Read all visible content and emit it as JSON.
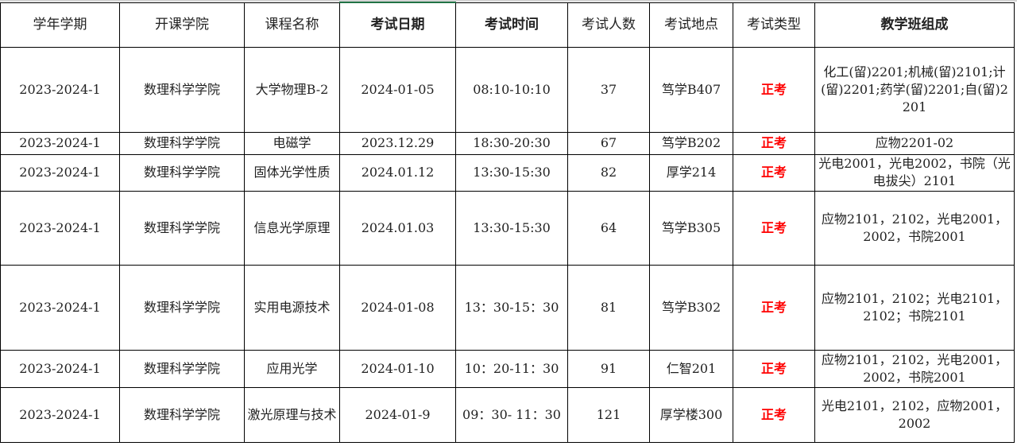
{
  "headers": [
    "学年学期",
    "开课学院",
    "课程名称",
    "考试日期",
    "考试时间",
    "考试人数",
    "考试地点",
    "考试类型",
    "教学班组成"
  ],
  "rows": [
    [
      "2023-2024-1",
      "数理科学学院",
      "大学物理B-2",
      "2024-01-05",
      "08:10-10:10",
      "37",
      "笃学B407",
      "正考",
      "化工(留)2201;机械(留)2101;计(留)2201;药学(留)2201;自(留)2201"
    ],
    [
      "2023-2024-1",
      "数理科学学院",
      "电磁学",
      "2023.12.29",
      "18:30-20:30",
      "67",
      "笃学B202",
      "正考",
      "应物2201-02"
    ],
    [
      "2023-2024-1",
      "数理科学学院",
      "固体光学性质",
      "2024.01.12",
      "13:30-15:30",
      "82",
      "厚学214",
      "正考",
      "光电2001，光电2002，书院（光电拔尖）2101"
    ],
    [
      "2023-2024-1",
      "数理科学学院",
      "信息光学原理",
      "2024.01.03",
      "13:30-15:30",
      "64",
      "笃学B305",
      "正考",
      "应物2101，2102，光电2001，2002，书院2001"
    ],
    [
      "2023-2024-1",
      "数理科学学院",
      "实用电源技术",
      "2024-01-08",
      "13：30-15：30",
      "81",
      "笃学B302",
      "正考",
      "应物2101，2102；光电2101，2102；书院2101"
    ],
    [
      "2023-2024-1",
      "数理科学学院",
      "应用光学",
      "2024-01-10",
      "10：20-11：30",
      "91",
      "仁智201",
      "正考",
      "应物2101，2102，光电2001，2002，书院2001"
    ],
    [
      "2023-2024-1",
      "数理科学学院",
      "激光原理与技术",
      "2024-01-9",
      "09：30- 11：30",
      "121",
      "厚学楼300",
      "正考",
      "光电2101，2102，应物2001，2002"
    ]
  ],
  "colors": {
    "exam_type": "#ff0000",
    "active_cell_border": "#217346"
  }
}
